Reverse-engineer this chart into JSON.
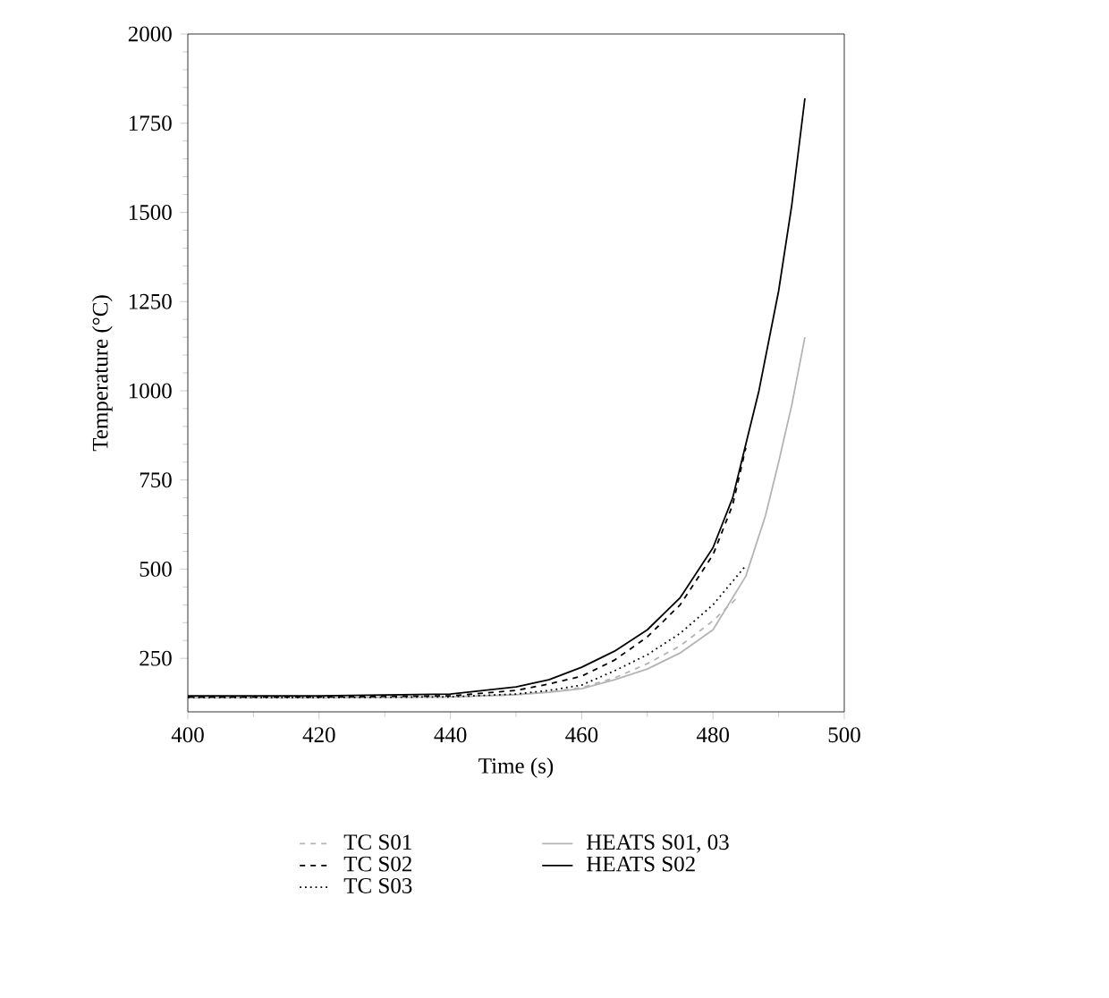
{
  "chart_data": {
    "type": "line",
    "xlabel": "Time (s)",
    "ylabel": "Temperature (°C)",
    "xlim": [
      400,
      500
    ],
    "ylim": [
      100,
      2000
    ],
    "xticks": [
      400,
      420,
      440,
      460,
      480,
      500
    ],
    "yticks": [
      250,
      500,
      750,
      1000,
      1250,
      1500,
      1750,
      2000
    ],
    "legend": "bottom",
    "grid": false,
    "series": [
      {
        "name": "TC S01",
        "color": "#b4b4b4",
        "line_style": "dashed",
        "x": [
          400,
          420,
          440,
          450,
          455,
          460,
          465,
          470,
          475,
          480,
          484
        ],
        "values": [
          140,
          140,
          142,
          148,
          156,
          168,
          195,
          235,
          285,
          355,
          425
        ]
      },
      {
        "name": "TC S02",
        "color": "#000000",
        "line_style": "dashed",
        "x": [
          400,
          420,
          440,
          450,
          455,
          460,
          465,
          470,
          475,
          480,
          483,
          485
        ],
        "values": [
          142,
          142,
          145,
          160,
          178,
          200,
          245,
          310,
          400,
          540,
          680,
          840
        ]
      },
      {
        "name": "TC S03",
        "color": "#000000",
        "line_style": "dotted",
        "x": [
          400,
          420,
          440,
          450,
          455,
          460,
          465,
          470,
          475,
          480,
          485
        ],
        "values": [
          140,
          140,
          142,
          150,
          160,
          175,
          215,
          260,
          320,
          400,
          510
        ]
      },
      {
        "name": "HEATS S01, 03",
        "color": "#b4b4b4",
        "line_style": "solid",
        "x": [
          400,
          420,
          440,
          450,
          455,
          460,
          465,
          470,
          475,
          480,
          485,
          488,
          490,
          492,
          494
        ],
        "values": [
          140,
          140,
          142,
          148,
          155,
          165,
          190,
          220,
          265,
          330,
          480,
          650,
          800,
          960,
          1150
        ]
      },
      {
        "name": "HEATS S02",
        "color": "#000000",
        "line_style": "solid",
        "x": [
          400,
          420,
          440,
          450,
          455,
          460,
          465,
          470,
          475,
          480,
          483,
          485,
          487,
          490,
          492,
          494
        ],
        "values": [
          145,
          145,
          150,
          170,
          190,
          225,
          270,
          330,
          420,
          560,
          700,
          850,
          1000,
          1280,
          1520,
          1820
        ]
      }
    ]
  }
}
